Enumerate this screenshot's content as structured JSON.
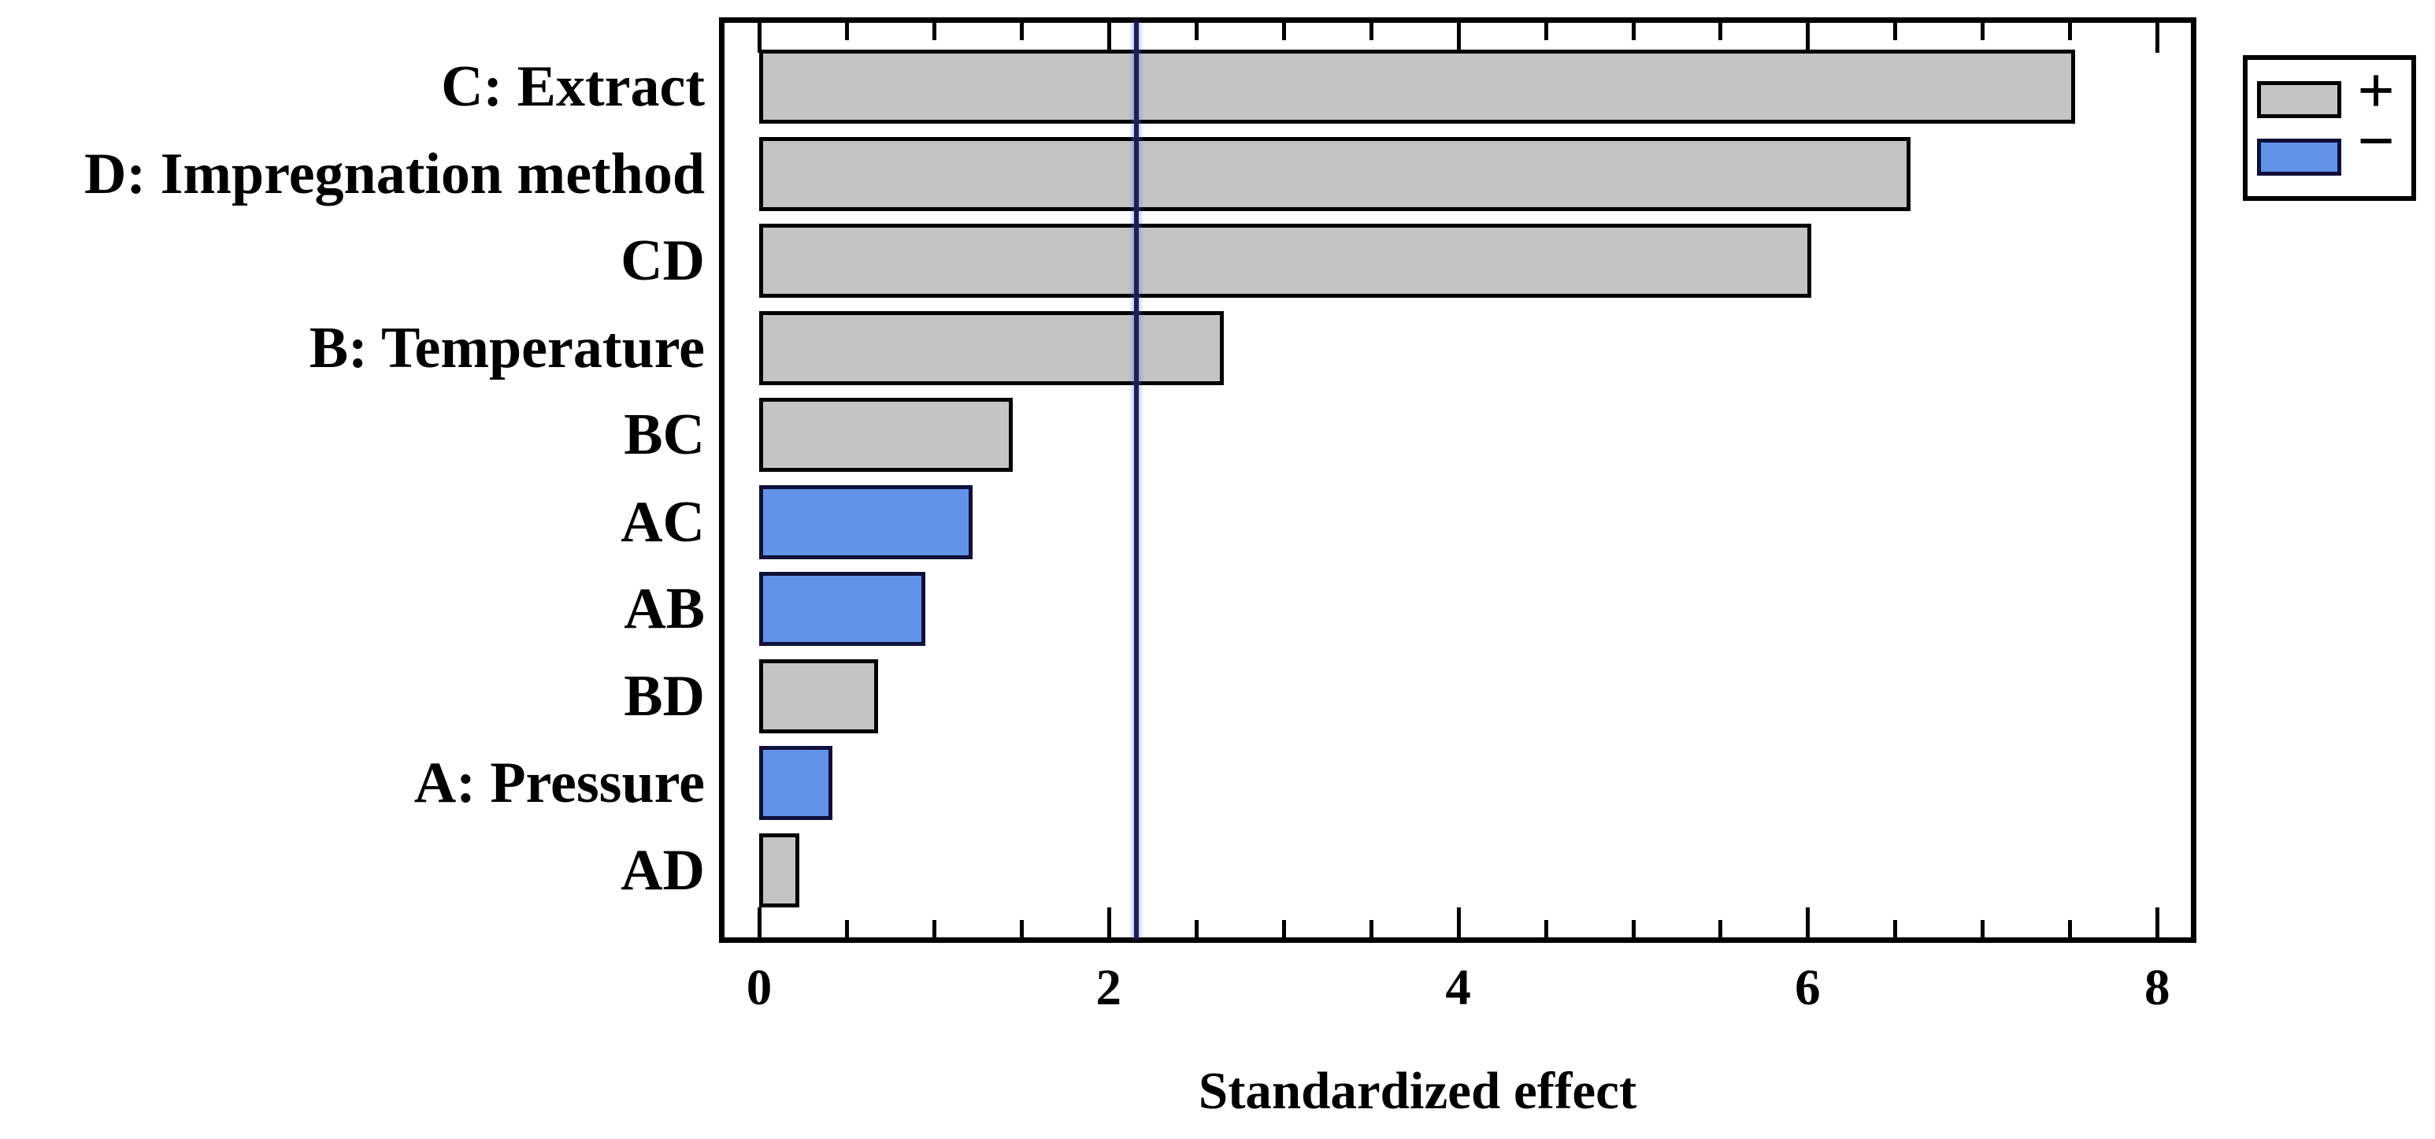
{
  "chart_data": {
    "type": "bar",
    "orientation": "horizontal",
    "title": "",
    "xlabel": "Standardized effect",
    "categories": [
      "C: Extract",
      "D: Impregnation method",
      "CD",
      "B: Temperature",
      "BC",
      "AC",
      "AB",
      "BD",
      "A: Pressure",
      "AD"
    ],
    "values": [
      7.53,
      6.59,
      6.02,
      2.66,
      1.45,
      1.22,
      0.95,
      0.68,
      0.42,
      0.23
    ],
    "signs": [
      "+",
      "+",
      "+",
      "+",
      "+",
      "-",
      "-",
      "+",
      "-",
      "+"
    ],
    "reference_line": 2.16,
    "xlim": [
      -0.23,
      8.22
    ],
    "x_major_ticks": [
      0,
      2,
      4,
      6,
      8
    ],
    "x_minor_step": 0.5,
    "grid": false,
    "legend_position": "top-right",
    "legend": [
      {
        "label": "+",
        "meaning": "positive effect",
        "color": "#c4c4c4"
      },
      {
        "label": "−",
        "meaning": "negative effect",
        "color": "#6292e8"
      }
    ]
  },
  "colors": {
    "positive_fill": "#c4c4c4",
    "positive_border": "#000000",
    "negative_fill": "#6292e8",
    "negative_border": "#10103a",
    "reference_line": "#1e1e55",
    "frame": "#000000",
    "background": "#ffffff"
  }
}
